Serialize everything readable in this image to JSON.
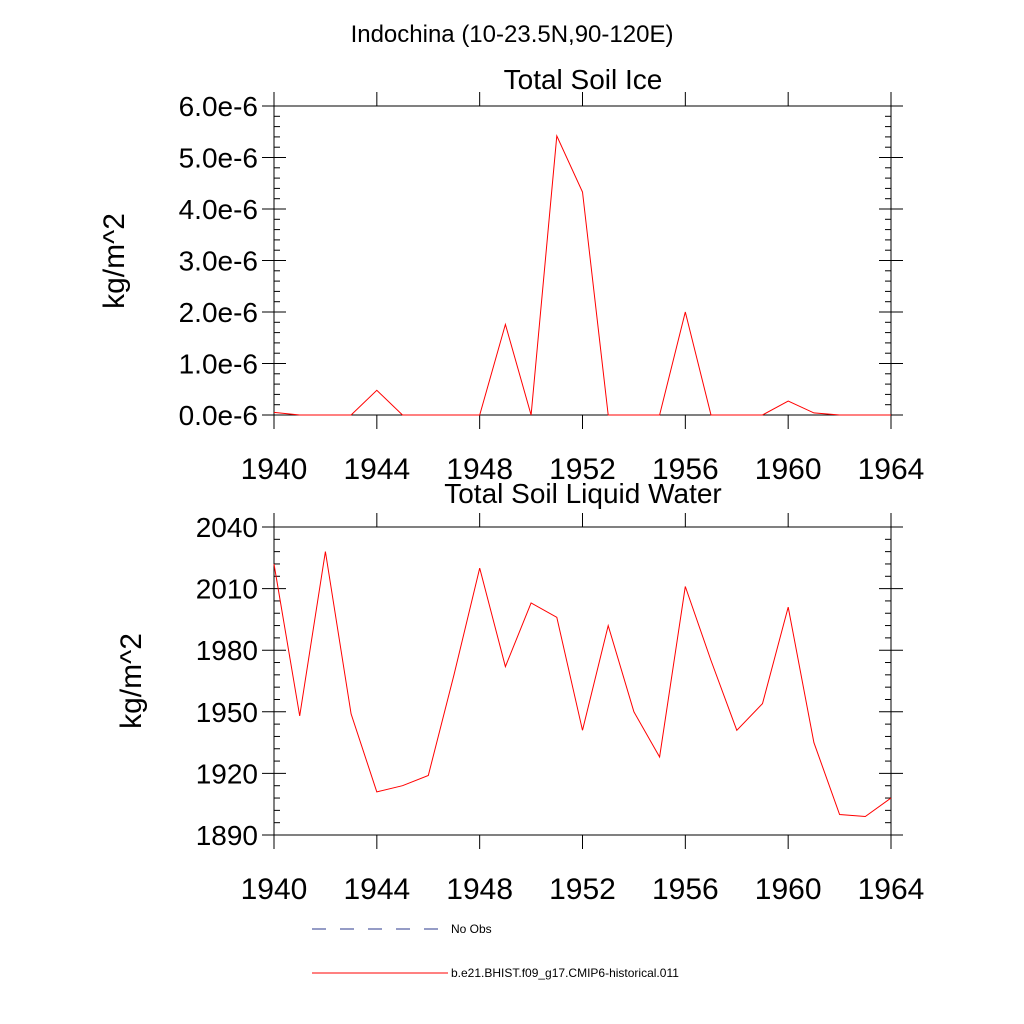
{
  "suptitle": "Indochina (10-23.5N,90-120E)",
  "legend": {
    "placement": "bottom",
    "items": [
      {
        "label": "No Obs",
        "color": "#2b3a8c",
        "dash": "dashed"
      },
      {
        "label": "b.e21.BHIST.f09_g17.CMIP6-historical.011",
        "color": "#ff0000",
        "dash": "solid"
      }
    ]
  },
  "chart_data": [
    {
      "type": "line",
      "title": "Total Soil Ice",
      "xlabel": "",
      "ylabel": "kg/m^2",
      "xlim": [
        1940,
        1964
      ],
      "ylim": [
        0,
        6e-06
      ],
      "xticks": [
        1940,
        1944,
        1948,
        1952,
        1956,
        1960,
        1964
      ],
      "xtick_labels": [
        "1940",
        "1944",
        "1948",
        "1952",
        "1956",
        "1960",
        "1964"
      ],
      "yticks": [
        0,
        1e-06,
        2e-06,
        3e-06,
        4e-06,
        5e-06,
        6e-06
      ],
      "ytick_labels": [
        "0.0e-6",
        "1.0e-6",
        "2.0e-6",
        "3.0e-6",
        "4.0e-6",
        "5.0e-6",
        "6.0e-6"
      ],
      "y_minor_per_major": 5,
      "grid": false,
      "series": [
        {
          "color": "#ff0000",
          "x": [
            1940,
            1941,
            1942,
            1943,
            1944,
            1945,
            1946,
            1947,
            1948,
            1949,
            1950,
            1951,
            1952,
            1953,
            1954,
            1955,
            1956,
            1957,
            1958,
            1959,
            1960,
            1961,
            1962,
            1963,
            1964
          ],
          "y": [
            5e-08,
            0,
            0,
            0,
            4.8e-07,
            0,
            0,
            0,
            0,
            1.76e-06,
            0,
            5.42e-06,
            4.33e-06,
            0,
            0,
            0,
            2e-06,
            0,
            0,
            0,
            2.7e-07,
            4e-08,
            0,
            0,
            0
          ]
        }
      ]
    },
    {
      "type": "line",
      "title": "Total Soil Liquid Water",
      "xlabel": "",
      "ylabel": "kg/m^2",
      "xlim": [
        1940,
        1964
      ],
      "ylim": [
        1890,
        2040
      ],
      "xticks": [
        1940,
        1944,
        1948,
        1952,
        1956,
        1960,
        1964
      ],
      "xtick_labels": [
        "1940",
        "1944",
        "1948",
        "1952",
        "1956",
        "1960",
        "1964"
      ],
      "yticks": [
        1890,
        1920,
        1950,
        1980,
        2010,
        2040
      ],
      "ytick_labels": [
        "1890",
        "1920",
        "1950",
        "1980",
        "2010",
        "2040"
      ],
      "y_minor_per_major": 5,
      "grid": false,
      "series": [
        {
          "color": "#ff0000",
          "x": [
            1940,
            1941,
            1942,
            1943,
            1944,
            1945,
            1946,
            1947,
            1948,
            1949,
            1950,
            1951,
            1952,
            1953,
            1954,
            1955,
            1956,
            1957,
            1958,
            1959,
            1960,
            1961,
            1962,
            1963,
            1964
          ],
          "y": [
            2022,
            1948,
            2028,
            1949,
            1911,
            1914,
            1919,
            1968,
            2020,
            1972,
            2003,
            1996,
            1941,
            1992,
            1950,
            1928,
            2011,
            1975,
            1941,
            1954,
            2001,
            1935,
            1900,
            1899,
            1908
          ]
        }
      ]
    }
  ]
}
